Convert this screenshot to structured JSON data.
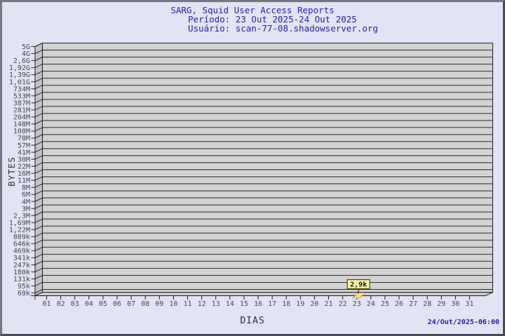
{
  "header": {
    "title": "SARG, Squid User Access Reports",
    "period": "Período: 23 Out 2025-24 Out 2025",
    "user": "Usuário: scan-77-08.shadowserver.org"
  },
  "footer": {
    "timestamp": "24/Out/2025-06:00"
  },
  "chart_data": {
    "type": "bar",
    "title": "SARG, Squid User Access Reports",
    "subtitle_period": "Período: 23 Out 2025-24 Out 2025",
    "subtitle_user": "Usuário: scan-77-08.shadowserver.org",
    "xlabel": "DIAS",
    "ylabel": "BYTES",
    "y_scale": "log",
    "grid": "horizontal",
    "legend": "none",
    "x_ticks": [
      "01",
      "02",
      "03",
      "04",
      "05",
      "06",
      "07",
      "08",
      "09",
      "10",
      "11",
      "12",
      "13",
      "14",
      "15",
      "16",
      "17",
      "18",
      "19",
      "20",
      "21",
      "22",
      "23",
      "24",
      "25",
      "26",
      "27",
      "28",
      "29",
      "30",
      "31"
    ],
    "y_ticks": [
      "5G",
      "4G",
      "2,6G",
      "1,92G",
      "1,39G",
      "1,01G",
      "734M",
      "533M",
      "387M",
      "281M",
      "204M",
      "148M",
      "108M",
      "78M",
      "57M",
      "41M",
      "30M",
      "22M",
      "16M",
      "11M",
      "8M",
      "6M",
      "4M",
      "3M",
      "2,3M",
      "1,69M",
      "1,22M",
      "889k",
      "646k",
      "469k",
      "341k",
      "247k",
      "180k",
      "131k",
      "95k",
      "69k"
    ],
    "bars": [
      {
        "day": "23",
        "value_label": "2,9k",
        "value_bytes": 2900
      }
    ]
  },
  "colors": {
    "page_bg": "#e3e3f6",
    "border_light": "#76767e",
    "border_dark": "#4a4a52",
    "title_text": "#24249c",
    "axis_label_text": "#2e2e34",
    "plot_bg": "#d2d2d2",
    "wall_bg": "#c3c3c7",
    "floor_bg": "#c9c9cd",
    "grid_line": "#2a2a2a",
    "axis_line": "#1c1c1c",
    "tick_text": "#46464a",
    "bar_fill": "#f2da87",
    "bar_edge": "#a8953e",
    "tooltip_bg": "#f8f1a8",
    "tooltip_border": "#4a4410",
    "tooltip_text": "#1a1a04"
  }
}
